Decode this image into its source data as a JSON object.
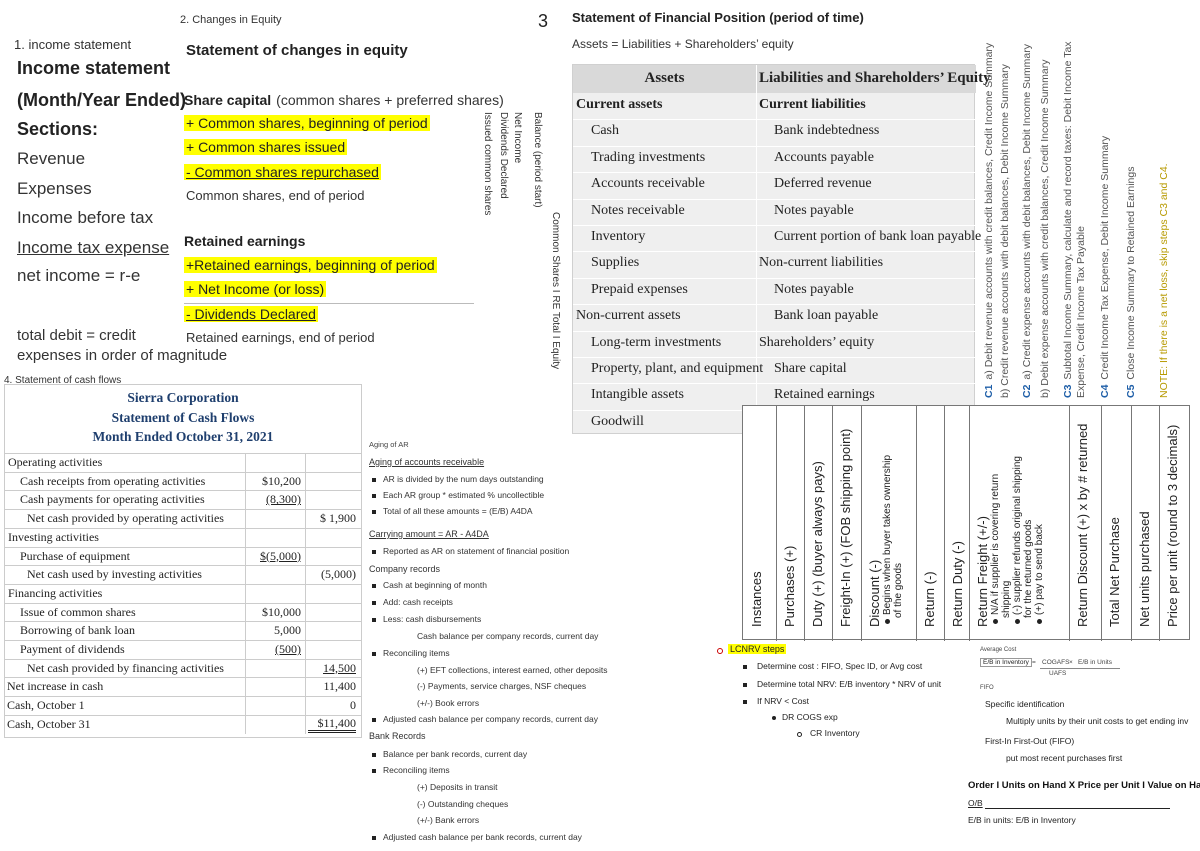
{
  "income": {
    "heading": "1. income statement",
    "title": "Income statement",
    "period": "(Month/Year Ended)",
    "sections_label": "Sections:",
    "items": [
      "Revenue",
      "Expenses",
      "Income before tax",
      "Income tax expense",
      "net income = r-e"
    ],
    "notes": [
      "total debit = credit",
      "expenses in order of magnitude"
    ]
  },
  "equity": {
    "heading": "2. Changes in Equity",
    "title": "Statement of changes in equity",
    "share_capital": {
      "label": "Share capital",
      "detail": "(common shares + preferred shares)",
      "items": [
        "+ Common shares, beginning of period",
        "+ Common shares issued",
        "- Common shares repurchased",
        "Common shares, end of period"
      ]
    },
    "retained": {
      "label": "Retained earnings",
      "items": [
        "+Retained earnings, beginning of period",
        "+ Net Income (or loss)",
        "- Dividends Declared",
        "Retained earnings, end of period"
      ]
    },
    "columns": [
      "Issued common shares",
      "Dividends Declared",
      "Net Income",
      "Balance (period start)"
    ],
    "columns_footer": "Common Shares I RE Total I Equity"
  },
  "position": {
    "number": "3",
    "title": "Statement of Financial Position  (period of time)",
    "equation": "Assets = Liabilities + Shareholders’ equity",
    "headers": [
      "Assets",
      "Liabilities and Shareholders’ Equity"
    ],
    "assets": [
      {
        "heading": "Current assets",
        "items": [
          "Cash",
          "Trading investments",
          "Accounts receivable",
          "Notes receivable",
          "Inventory",
          "Supplies",
          "Prepaid expenses"
        ]
      },
      {
        "heading": "Non-current assets",
        "items": [
          "Long-term investments",
          "Property, plant, and equipment",
          "Intangible assets",
          "Goodwill"
        ]
      }
    ],
    "liabilities": [
      {
        "heading": "Current liabilities",
        "items": [
          "Bank indebtedness",
          "Accounts payable",
          "Deferred revenue",
          "Notes payable",
          "Current portion of bank loan payable"
        ]
      },
      {
        "heading": "Non-current liabilities",
        "items": [
          "Notes payable",
          "Bank loan payable"
        ]
      },
      {
        "heading": "Shareholders’ equity",
        "items": [
          "Share capital",
          "Retained earnings"
        ]
      }
    ]
  },
  "closing": {
    "steps": [
      {
        "step": "C1",
        "lines": [
          "a) Debit revenue accounts with credit balances, Credit Income Summary",
          "b) Credit revenue accounts with debit balances, Debit Income Summary"
        ]
      },
      {
        "step": "C2",
        "lines": [
          "a) Credit expense accounts with debit balances, Debit Income Summary",
          "b) Debit expense accounts with credit balances, Credit Income Summary"
        ]
      },
      {
        "step": "C3",
        "lines": [
          "Subtotal Income Summary, calculate and record taxes: Debit Income Tax",
          "Expense, Credit Income Tax Payable"
        ]
      },
      {
        "step": "C4",
        "lines": [
          "Credit Income Tax Expense, Debit Income Summary"
        ]
      },
      {
        "step": "C5",
        "lines": [
          "Close Income Summary to Retained Earnings"
        ]
      }
    ],
    "note": "NOTE: If there is a net loss, skip steps C3 and C4."
  },
  "cash_flows": {
    "heading": "4. Statement of cash flows",
    "company": "Sierra Corporation",
    "title": "Statement of Cash Flows",
    "period": "Month Ended October 31, 2021",
    "sections": [
      {
        "heading": "Operating activities",
        "items": [
          {
            "label": "Cash receipts from operating activities",
            "amount": "$10,200"
          },
          {
            "label": "Cash payments for operating activities",
            "amount": "(8,300)"
          }
        ],
        "net": {
          "label": "Net cash provided by operating activities",
          "total": "$ 1,900"
        }
      },
      {
        "heading": "Investing activities",
        "items": [
          {
            "label": "Purchase of equipment",
            "amount": "$(5,000)"
          }
        ],
        "net": {
          "label": "Net cash used by investing activities",
          "total": "(5,000)"
        }
      },
      {
        "heading": "Financing activities",
        "items": [
          {
            "label": "Issue of common shares",
            "amount": "$10,000"
          },
          {
            "label": "Borrowing of bank loan",
            "amount": "5,000"
          },
          {
            "label": "Payment of dividends",
            "amount": "(500)"
          }
        ],
        "net": {
          "label": "Net cash provided by financing activities",
          "total": "14,500"
        }
      }
    ],
    "summary": [
      {
        "label": "Net increase in cash",
        "total": "11,400"
      },
      {
        "label": "Cash, October 1",
        "total": "0"
      },
      {
        "label": "Cash, October 31",
        "total": "$11,400"
      }
    ]
  },
  "notes": [
    {
      "style": "small",
      "text": "Aging of AR"
    },
    {
      "style": "underline",
      "text": "Aging of accounts receivable"
    },
    {
      "style": "bullet",
      "text": "AR is divided by the num days outstanding"
    },
    {
      "style": "bullet",
      "text": "Each AR group * estimated % uncollectible"
    },
    {
      "style": "bullet",
      "text": "Total of all these amounts = (E/B) A4DA"
    },
    {
      "style": "underline",
      "text": "Carrying amount = AR - A4DA"
    },
    {
      "style": "bullet",
      "text": "Reported as AR on statement of financial position"
    },
    {
      "style": "heading",
      "text": "Company records"
    },
    {
      "style": "bullet",
      "text": "Cash at beginning of month"
    },
    {
      "style": "bullet",
      "text": "Add: cash receipts"
    },
    {
      "style": "bullet",
      "text": "Less: cash disbursements"
    },
    {
      "style": "indent",
      "text": "Cash balance per company records, current day"
    },
    {
      "style": "bullet",
      "text": "Reconciling items"
    },
    {
      "style": "indent",
      "text": "(+) EFT collections, interest earned, other deposits"
    },
    {
      "style": "indent",
      "text": "(-) Payments, service charges, NSF cheques"
    },
    {
      "style": "indent",
      "text": "(+/-) Book errors"
    },
    {
      "style": "bullet",
      "text": "Adjusted cash balance per company records, current day"
    },
    {
      "style": "heading",
      "text": "Bank Records"
    },
    {
      "style": "bullet",
      "text": "Balance per bank records, current day"
    },
    {
      "style": "bullet",
      "text": "Reconciling items"
    },
    {
      "style": "indent",
      "text": "(+) Deposits in transit"
    },
    {
      "style": "indent",
      "text": "(-) Outstanding cheques"
    },
    {
      "style": "indent",
      "text": "(+/-) Bank errors"
    },
    {
      "style": "bullet",
      "text": "Adjusted cash balance per bank records, current day"
    }
  ],
  "inventory_columns": [
    {
      "title": "Instances"
    },
    {
      "title": "Purchases (+)"
    },
    {
      "title": "Duty (+) (buyer always pays)"
    },
    {
      "title": "Freight-In (+) (FOB shipping point)"
    },
    {
      "title": "Discount (-)",
      "notes": [
        "Begins when buyer takes ownership",
        "of the goods"
      ]
    },
    {
      "title": "Return (-)"
    },
    {
      "title": "Return Duty (-)"
    },
    {
      "title": "Return Freight (+/-)",
      "notes": [
        "N/A if supplier is covering return",
        "shipping",
        "(-) supplier refunds original shipping",
        "for the returned goods",
        "(+) pay to send back"
      ]
    },
    {
      "title": "Return Discount (+) x by # returned"
    },
    {
      "title": "Total Net Purchase"
    },
    {
      "title": "Net units purchased"
    },
    {
      "title": "Price per unit (round to 3 decimals)"
    }
  ],
  "lcnrv": {
    "title": "LCNRV steps",
    "steps": [
      {
        "text": "Determine cost : FIFO, Spec ID, or Avg cost"
      },
      {
        "text": "Determine total NRV: E/B inventory * NRV of unit"
      },
      {
        "text": "If NRV < Cost",
        "children": [
          {
            "text": "DR COGS exp",
            "children": [
              {
                "text": "CR Inventory"
              }
            ]
          }
        ]
      }
    ]
  },
  "costing": {
    "average_cost": "Average Cost",
    "formula": {
      "lhs": "E/B in Inventory",
      "eq": "=",
      "numerator": "COGAFS",
      "times": "×",
      "factor": "E/B in Units",
      "denominator": "UAFS"
    },
    "fifo_label": "FIFO",
    "methods": [
      {
        "name": "Specific identification",
        "detail": "Multiply units by their unit costs to get ending inv"
      },
      {
        "name": "First-In First-Out (FIFO)",
        "detail": "put most recent purchases first"
      }
    ],
    "table_header": "Order I Units on Hand X Price per Unit I Value on Hand",
    "opening": "O/B",
    "ending": "E/B in units: E/B in Inventory"
  }
}
